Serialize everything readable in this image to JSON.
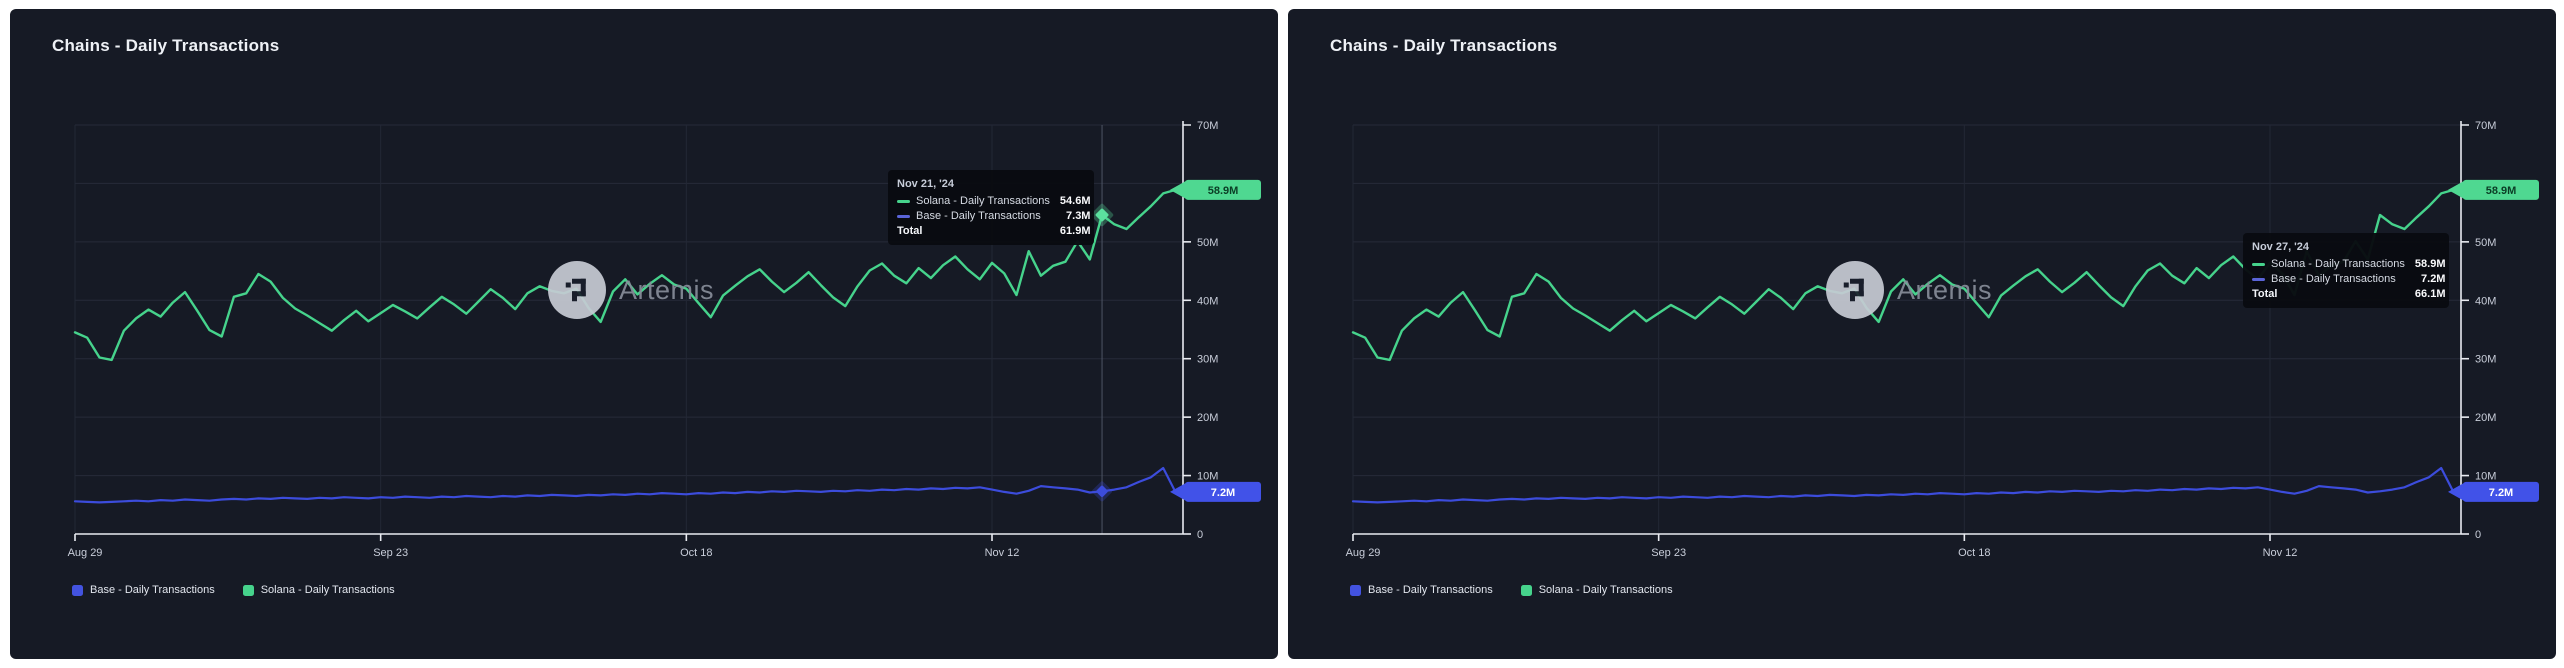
{
  "panels": [
    {
      "title": "Chains - Daily Transactions",
      "tooltip": {
        "date": "Nov 21, '24",
        "rows": [
          {
            "series": "Solana - Daily Transactions",
            "value": "54.6M",
            "color": "#46D38C"
          },
          {
            "series": "Base - Daily Transactions",
            "value": "7.3M",
            "color": "#5A64D8"
          }
        ],
        "total_label": "Total",
        "total_value": "61.9M"
      },
      "hover_index": 84,
      "show_crosshair": true,
      "axis_badges": {
        "solana": "58.9M",
        "base": "7.2M"
      },
      "legend": [
        {
          "label": "Base - Daily Transactions",
          "color": "#4353E0"
        },
        {
          "label": "Solana - Daily Transactions",
          "color": "#46D38C"
        }
      ],
      "watermark_text": "Artemis"
    },
    {
      "title": "Chains - Daily Transactions",
      "tooltip": {
        "date": "Nov 27, '24",
        "rows": [
          {
            "series": "Solana - Daily Transactions",
            "value": "58.9M",
            "color": "#46D38C"
          },
          {
            "series": "Base - Daily Transactions",
            "value": "7.2M",
            "color": "#5A64D8"
          }
        ],
        "total_label": "Total",
        "total_value": "66.1M"
      },
      "hover_index": 90,
      "show_crosshair": false,
      "axis_badges": {
        "solana": "58.9M",
        "base": "7.2M"
      },
      "legend": [
        {
          "label": "Base - Daily Transactions",
          "color": "#4353E0"
        },
        {
          "label": "Solana - Daily Transactions",
          "color": "#46D38C"
        }
      ],
      "watermark_text": "Artemis"
    }
  ],
  "chart_data": [
    {
      "type": "line",
      "title": "Chains - Daily Transactions",
      "x_range": [
        "Aug 29, '24",
        "Nov 27, '24"
      ],
      "n_points": 91,
      "x_tick_labels": [
        "Aug 29",
        "Sep 23",
        "Oct 18",
        "Nov 12"
      ],
      "x_tick_indices": [
        0,
        25,
        50,
        75
      ],
      "y_tick_labels": [
        "0",
        "10M",
        "20M",
        "30M",
        "40M",
        "50M",
        "60M",
        "70M"
      ],
      "ylim_millions": [
        0,
        70
      ],
      "y_axis_side": "right",
      "grid": true,
      "legend_position": "bottom-left",
      "unit": "daily transactions (millions)",
      "series": [
        {
          "name": "Base - Daily Transactions",
          "color": "#3C4CDC",
          "values_millions": [
            5.6,
            5.5,
            5.4,
            5.5,
            5.6,
            5.7,
            5.6,
            5.8,
            5.7,
            5.9,
            5.8,
            5.7,
            5.9,
            6.0,
            5.9,
            6.1,
            6.0,
            6.2,
            6.1,
            6.0,
            6.2,
            6.1,
            6.3,
            6.2,
            6.1,
            6.3,
            6.2,
            6.4,
            6.3,
            6.2,
            6.4,
            6.3,
            6.5,
            6.4,
            6.3,
            6.5,
            6.4,
            6.6,
            6.5,
            6.7,
            6.6,
            6.5,
            6.7,
            6.6,
            6.8,
            6.7,
            6.9,
            6.8,
            7.0,
            6.9,
            6.8,
            7.0,
            6.9,
            7.1,
            7.0,
            7.2,
            7.1,
            7.3,
            7.2,
            7.4,
            7.3,
            7.2,
            7.4,
            7.3,
            7.5,
            7.4,
            7.6,
            7.5,
            7.7,
            7.6,
            7.8,
            7.7,
            7.9,
            7.8,
            8.0,
            7.6,
            7.2,
            6.9,
            7.4,
            8.2,
            8.0,
            7.8,
            7.6,
            7.1,
            7.3,
            7.6,
            8.0,
            8.9,
            9.7,
            11.3,
            7.2
          ]
        },
        {
          "name": "Solana - Daily Transactions",
          "color": "#46D38C",
          "values_millions": [
            34.5,
            33.6,
            30.2,
            29.8,
            34.8,
            36.9,
            38.4,
            37.2,
            39.6,
            41.4,
            38.2,
            34.9,
            33.8,
            40.6,
            41.2,
            44.5,
            43.2,
            40.4,
            38.6,
            37.4,
            36.1,
            34.8,
            36.6,
            38.2,
            36.4,
            37.8,
            39.2,
            38.1,
            36.9,
            38.8,
            40.6,
            39.3,
            37.7,
            39.8,
            41.9,
            40.4,
            38.5,
            41.2,
            42.4,
            41.6,
            41.2,
            42.0,
            38.7,
            36.3,
            41.5,
            43.6,
            41.0,
            42.8,
            44.3,
            42.7,
            42.0,
            39.5,
            37.1,
            40.8,
            42.5,
            44.1,
            45.3,
            43.2,
            41.4,
            43.0,
            44.8,
            42.6,
            40.5,
            39.0,
            42.4,
            45.1,
            46.3,
            44.2,
            42.9,
            45.5,
            43.8,
            46.0,
            47.5,
            45.3,
            43.6,
            46.4,
            44.6,
            40.9,
            48.4,
            44.2,
            45.9,
            46.6,
            50.1,
            47.0,
            54.6,
            53.0,
            52.2,
            54.2,
            56.1,
            58.3,
            58.9
          ]
        }
      ],
      "hover": {
        "date": "Nov 21, '24",
        "solana_millions": 54.6,
        "base_millions": 7.3,
        "total_millions": 61.9
      }
    },
    {
      "type": "line",
      "title": "Chains - Daily Transactions",
      "x_range": [
        "Aug 29, '24",
        "Nov 27, '24"
      ],
      "n_points": 91,
      "x_tick_labels": [
        "Aug 29",
        "Sep 23",
        "Oct 18",
        "Nov 12"
      ],
      "x_tick_indices": [
        0,
        25,
        50,
        75
      ],
      "y_tick_labels": [
        "0",
        "10M",
        "20M",
        "30M",
        "40M",
        "50M",
        "60M",
        "70M"
      ],
      "ylim_millions": [
        0,
        70
      ],
      "y_axis_side": "right",
      "grid": true,
      "legend_position": "bottom-left",
      "unit": "daily transactions (millions)",
      "series": [
        {
          "name": "Base - Daily Transactions",
          "color": "#3C4CDC",
          "values_millions": [
            5.6,
            5.5,
            5.4,
            5.5,
            5.6,
            5.7,
            5.6,
            5.8,
            5.7,
            5.9,
            5.8,
            5.7,
            5.9,
            6.0,
            5.9,
            6.1,
            6.0,
            6.2,
            6.1,
            6.0,
            6.2,
            6.1,
            6.3,
            6.2,
            6.1,
            6.3,
            6.2,
            6.4,
            6.3,
            6.2,
            6.4,
            6.3,
            6.5,
            6.4,
            6.3,
            6.5,
            6.4,
            6.6,
            6.5,
            6.7,
            6.6,
            6.5,
            6.7,
            6.6,
            6.8,
            6.7,
            6.9,
            6.8,
            7.0,
            6.9,
            6.8,
            7.0,
            6.9,
            7.1,
            7.0,
            7.2,
            7.1,
            7.3,
            7.2,
            7.4,
            7.3,
            7.2,
            7.4,
            7.3,
            7.5,
            7.4,
            7.6,
            7.5,
            7.7,
            7.6,
            7.8,
            7.7,
            7.9,
            7.8,
            8.0,
            7.6,
            7.2,
            6.9,
            7.4,
            8.2,
            8.0,
            7.8,
            7.6,
            7.1,
            7.3,
            7.6,
            8.0,
            8.9,
            9.7,
            11.3,
            7.2
          ]
        },
        {
          "name": "Solana - Daily Transactions",
          "color": "#46D38C",
          "values_millions": [
            34.5,
            33.6,
            30.2,
            29.8,
            34.8,
            36.9,
            38.4,
            37.2,
            39.6,
            41.4,
            38.2,
            34.9,
            33.8,
            40.6,
            41.2,
            44.5,
            43.2,
            40.4,
            38.6,
            37.4,
            36.1,
            34.8,
            36.6,
            38.2,
            36.4,
            37.8,
            39.2,
            38.1,
            36.9,
            38.8,
            40.6,
            39.3,
            37.7,
            39.8,
            41.9,
            40.4,
            38.5,
            41.2,
            42.4,
            41.6,
            41.2,
            42.0,
            38.7,
            36.3,
            41.5,
            43.6,
            41.0,
            42.8,
            44.3,
            42.7,
            42.0,
            39.5,
            37.1,
            40.8,
            42.5,
            44.1,
            45.3,
            43.2,
            41.4,
            43.0,
            44.8,
            42.6,
            40.5,
            39.0,
            42.4,
            45.1,
            46.3,
            44.2,
            42.9,
            45.5,
            43.8,
            46.0,
            47.5,
            45.3,
            43.6,
            46.4,
            44.6,
            40.9,
            48.4,
            44.2,
            45.9,
            46.6,
            50.1,
            47.0,
            54.6,
            53.0,
            52.2,
            54.2,
            56.1,
            58.3,
            58.9
          ]
        }
      ],
      "hover": {
        "date": "Nov 27, '24",
        "solana_millions": 58.9,
        "base_millions": 7.2,
        "total_millions": 66.1
      }
    }
  ]
}
